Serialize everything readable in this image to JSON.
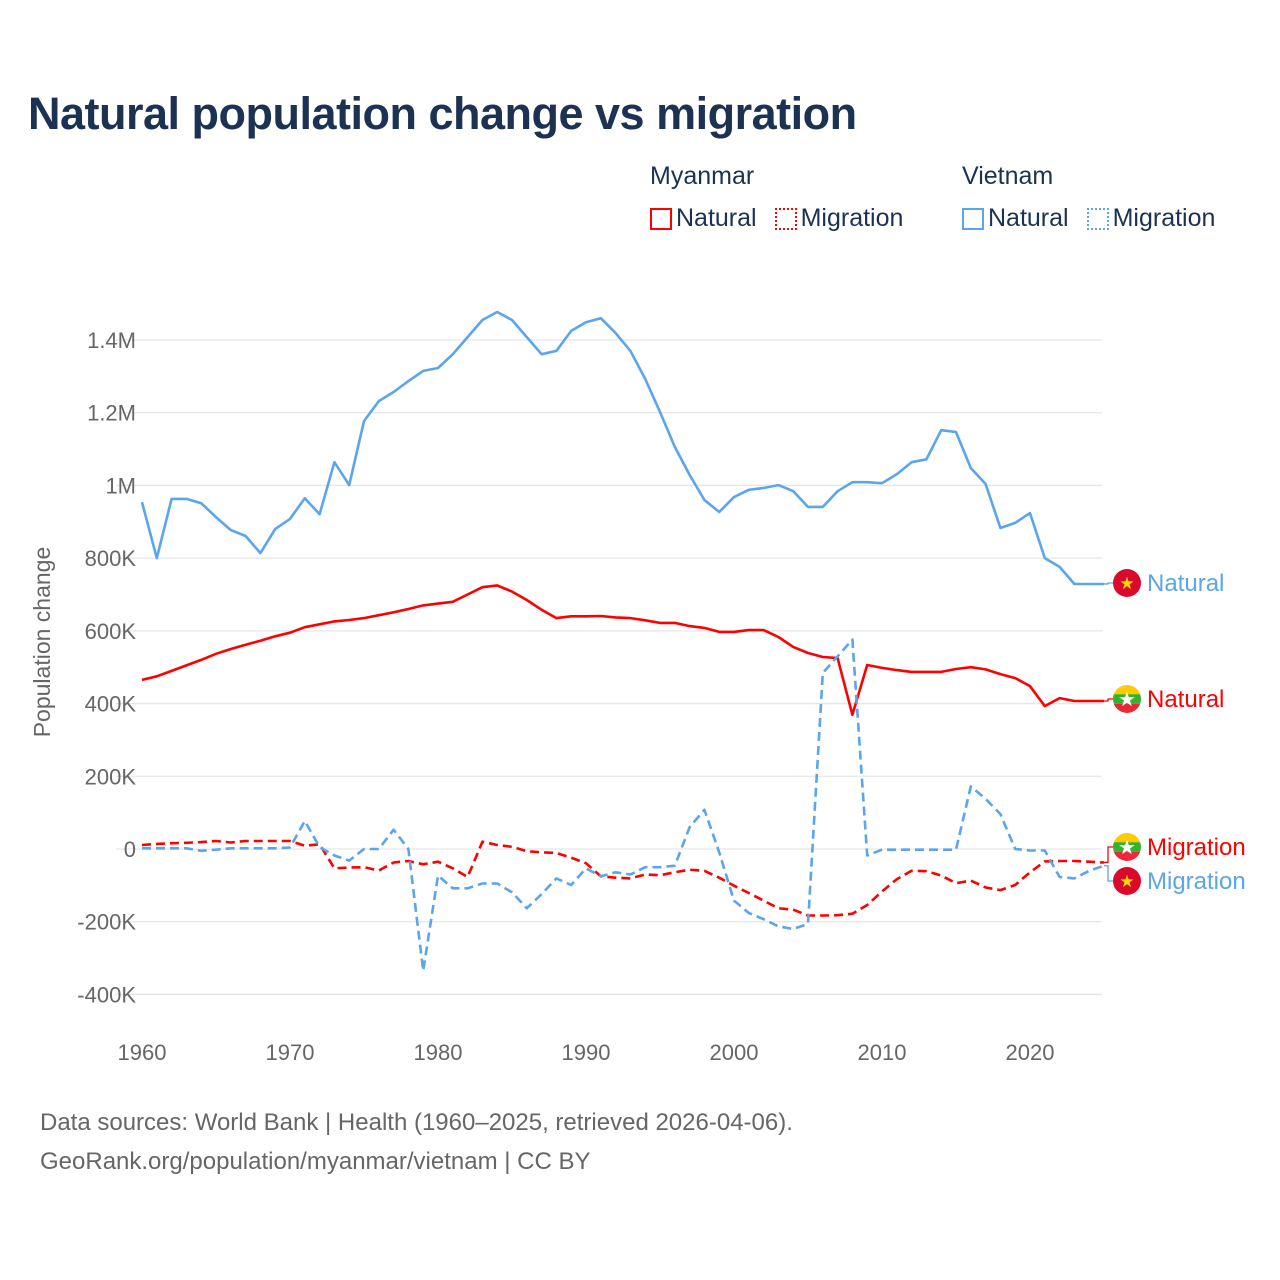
{
  "title": "Natural population change vs migration",
  "legend": {
    "groups": [
      {
        "name": "Myanmar",
        "items": [
          {
            "label": "Natural",
            "style": "solid"
          },
          {
            "label": "Migration",
            "style": "dotted"
          }
        ],
        "color": "#ff0000"
      },
      {
        "name": "Vietnam",
        "items": [
          {
            "label": "Natural",
            "style": "solid"
          },
          {
            "label": "Migration",
            "style": "dotted"
          }
        ],
        "color": "#5aa5eb"
      }
    ]
  },
  "footer": {
    "line1": "Data sources: World Bank | Health (1960–2025, retrieved 2026-04-06).",
    "line2": "GeoRank.org/population/myanmar/vietnam | CC BY"
  },
  "chart_data": {
    "type": "line",
    "title": "Natural population change vs migration",
    "xlabel": "",
    "ylabel": "Population change",
    "xlim": [
      1960,
      2025
    ],
    "ylim": [
      -400000,
      1400000
    ],
    "grid": true,
    "legend_position": "top-right",
    "x_ticks": [
      1960,
      1970,
      1980,
      1990,
      2000,
      2010,
      2020
    ],
    "x_tick_labels": [
      "1960",
      "1970",
      "1980",
      "1990",
      "2000",
      "2010",
      "2020"
    ],
    "y_ticks": [
      -400000,
      -200000,
      0,
      200000,
      400000,
      600000,
      800000,
      1000000,
      1200000,
      1400000
    ],
    "y_tick_labels": [
      "-400K",
      "-200K",
      "0",
      "200K",
      "400K",
      "600K",
      "800K",
      "1M",
      "1.2M",
      "1.4M"
    ],
    "x": [
      1960,
      1961,
      1962,
      1963,
      1964,
      1965,
      1966,
      1967,
      1968,
      1969,
      1970,
      1971,
      1972,
      1973,
      1974,
      1975,
      1976,
      1977,
      1978,
      1979,
      1980,
      1981,
      1982,
      1983,
      1984,
      1985,
      1986,
      1987,
      1988,
      1989,
      1990,
      1991,
      1992,
      1993,
      1994,
      1995,
      1996,
      1997,
      1998,
      1999,
      2000,
      2001,
      2002,
      2003,
      2004,
      2005,
      2006,
      2007,
      2008,
      2009,
      2010,
      2011,
      2012,
      2013,
      2014,
      2015,
      2016,
      2017,
      2018,
      2019,
      2020,
      2021,
      2022,
      2023,
      2024,
      2025
    ],
    "series": [
      {
        "name": "Vietnam Natural",
        "country": "Vietnam",
        "kind": "Natural",
        "end_label": "Natural",
        "color": "#5aa5eb",
        "dashed": false,
        "values": [
          954000,
          800000,
          963000,
          963000,
          951000,
          913000,
          877000,
          861000,
          814000,
          880000,
          908000,
          965000,
          921000,
          1064000,
          1001000,
          1177000,
          1232000,
          1257000,
          1287000,
          1315000,
          1323000,
          1361000,
          1408000,
          1455000,
          1477000,
          1455000,
          1408000,
          1361000,
          1370000,
          1425000,
          1449000,
          1460000,
          1419000,
          1370000,
          1293000,
          1202000,
          1106000,
          1029000,
          960000,
          927000,
          968000,
          988000,
          993000,
          1001000,
          984000,
          941000,
          941000,
          984000,
          1009000,
          1009000,
          1006000,
          1031000,
          1064000,
          1072000,
          1152000,
          1147000,
          1048000,
          1004000,
          883000,
          897000,
          924000,
          800000,
          776000,
          729000,
          729000,
          729000
        ]
      },
      {
        "name": "Myanmar Natural",
        "country": "Myanmar",
        "kind": "Natural",
        "end_label": "Natural",
        "color": "#ff0000",
        "dashed": false,
        "values": [
          465000,
          475000,
          490000,
          505000,
          520000,
          537000,
          550000,
          562000,
          573000,
          585000,
          595000,
          610000,
          618000,
          626000,
          630000,
          635000,
          643000,
          651000,
          660000,
          670000,
          675000,
          680000,
          700000,
          720000,
          725000,
          708000,
          685000,
          658000,
          635000,
          640000,
          640000,
          641000,
          637000,
          635000,
          629000,
          622000,
          622000,
          613000,
          608000,
          597000,
          597000,
          602000,
          602000,
          583000,
          556000,
          539000,
          528000,
          525000,
          369000,
          506000,
          498000,
          492000,
          487000,
          487000,
          487000,
          495000,
          500000,
          494000,
          481000,
          470000,
          448000,
          393000,
          415000,
          407000,
          407000,
          407000
        ]
      },
      {
        "name": "Myanmar Migration",
        "country": "Myanmar",
        "kind": "Migration",
        "end_label": "Migration",
        "color": "#ff0000",
        "dashed": true,
        "values": [
          11000,
          14000,
          16000,
          17000,
          19000,
          22000,
          18000,
          22000,
          22000,
          22000,
          22000,
          9000,
          13000,
          -53000,
          -51000,
          -50000,
          -59000,
          -37000,
          -33000,
          -42000,
          -35000,
          -53000,
          -77000,
          20000,
          11000,
          6000,
          -6000,
          -9000,
          -11000,
          -24000,
          -39000,
          -75000,
          -79000,
          -81000,
          -70000,
          -72000,
          -64000,
          -57000,
          -60000,
          -79000,
          -101000,
          -121000,
          -142000,
          -163000,
          -167000,
          -183000,
          -183000,
          -182000,
          -178000,
          -154000,
          -117000,
          -83000,
          -60000,
          -61000,
          -73000,
          -94000,
          -87000,
          -106000,
          -113000,
          -99000,
          -64000,
          -34000,
          -33000,
          -33000,
          -35000,
          -37000
        ]
      },
      {
        "name": "Vietnam Migration",
        "country": "Vietnam",
        "kind": "Migration",
        "end_label": "Migration",
        "color": "#5aa5eb",
        "dashed": true,
        "values": [
          2000,
          2000,
          2000,
          2000,
          -5000,
          -2000,
          2000,
          2000,
          2000,
          2000,
          4000,
          77000,
          5000,
          -18000,
          -32000,
          0,
          0,
          53000,
          0,
          -335000,
          -73000,
          -108000,
          -108000,
          -95000,
          -95000,
          -119000,
          -163000,
          -124000,
          -81000,
          -99000,
          -53000,
          -75000,
          -64000,
          -70000,
          -50000,
          -50000,
          -46000,
          60000,
          108000,
          -9000,
          -142000,
          -176000,
          -193000,
          -213000,
          -220000,
          -206000,
          484000,
          530000,
          576000,
          -18000,
          -2000,
          -2000,
          -2000,
          -2000,
          -2000,
          -2000,
          172000,
          138000,
          96000,
          0,
          -4000,
          -4000,
          -77000,
          -81000,
          -60000,
          -46000
        ]
      }
    ]
  }
}
